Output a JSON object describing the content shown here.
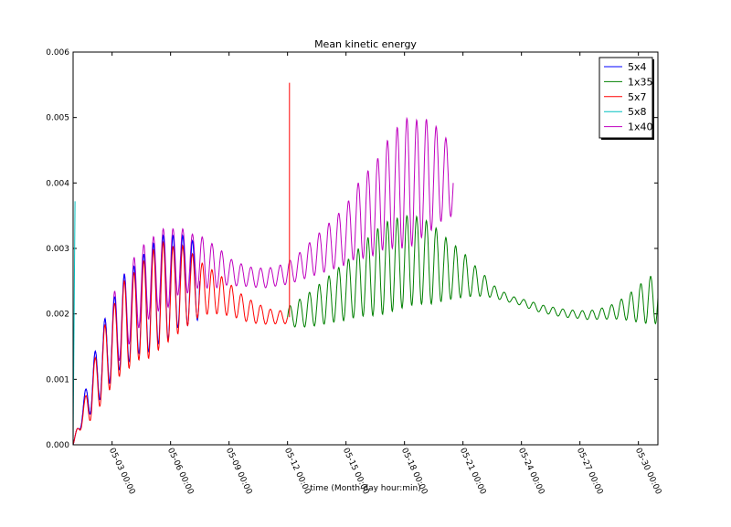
{
  "chart_data": {
    "type": "line",
    "title": "Mean kinetic energy",
    "xlabel": "time (Month-day hour:min)",
    "ylabel": "",
    "x_unit": "day_of_may",
    "xlim": [
      1.0,
      31.0
    ],
    "ylim": [
      0.0,
      0.006
    ],
    "yticks": [
      0.0,
      0.001,
      0.002,
      0.003,
      0.004,
      0.005,
      0.006
    ],
    "ytick_labels": [
      "0.000",
      "0.001",
      "0.002",
      "0.003",
      "0.004",
      "0.005",
      "0.006"
    ],
    "xticks": [
      3,
      6,
      9,
      12,
      15,
      18,
      21,
      24,
      27,
      30
    ],
    "xtick_labels": [
      "05-03 00:00",
      "05-06 00:00",
      "05-09 00:00",
      "05-12 00:00",
      "05-15 00:00",
      "05-18 00:00",
      "05-21 00:00",
      "05-24 00:00",
      "05-27 00:00",
      "05-30 00:00"
    ],
    "grid": false,
    "legend_position": "top-right",
    "series": [
      {
        "name": "5x4",
        "color": "#0000ff",
        "x": [
          1.0,
          1.3,
          1.6,
          2.0,
          2.4,
          2.8,
          3.2,
          3.6,
          4.0,
          4.4,
          4.8,
          5.2,
          5.6,
          6.0,
          6.4,
          6.8,
          7.2,
          7.5
        ],
        "y": [
          0.0,
          0.0003,
          0.0006,
          0.0009,
          0.0012,
          0.0015,
          0.0017,
          0.0019,
          0.002,
          0.0021,
          0.0022,
          0.0023,
          0.0024,
          0.0024,
          0.0025,
          0.0025,
          0.0025,
          0.0025
        ],
        "amplitude": [
          0.0,
          0.0001,
          0.0002,
          0.0004,
          0.0005,
          0.0006,
          0.0006,
          0.0007,
          0.0007,
          0.0007,
          0.0008,
          0.0008,
          0.0008,
          0.0008,
          0.0007,
          0.0007,
          0.0006,
          0.0006
        ]
      },
      {
        "name": "1x35",
        "color": "#008000",
        "x": [
          12.0,
          12.5,
          13.0,
          13.5,
          14.0,
          14.5,
          15.0,
          15.5,
          16.0,
          16.5,
          17.0,
          17.5,
          18.0,
          18.5,
          19.0,
          19.5,
          20.0,
          20.5,
          21.0,
          21.5,
          22.0,
          22.5,
          23.0,
          23.5,
          24.0,
          24.5,
          25.0,
          25.5,
          26.0,
          26.5,
          27.0,
          27.5,
          28.0,
          28.5,
          29.0,
          29.5,
          30.0,
          30.5,
          31.0
        ],
        "y": [
          0.00195,
          0.002,
          0.00205,
          0.00212,
          0.0022,
          0.00228,
          0.00235,
          0.00245,
          0.00255,
          0.00262,
          0.0027,
          0.00275,
          0.0028,
          0.00282,
          0.0028,
          0.00275,
          0.0027,
          0.00265,
          0.0026,
          0.00252,
          0.00245,
          0.00235,
          0.00228,
          0.00222,
          0.00218,
          0.00213,
          0.00208,
          0.00205,
          0.00202,
          0.002,
          0.00199,
          0.00198,
          0.002,
          0.00202,
          0.00206,
          0.0021,
          0.00215,
          0.0022,
          0.00225
        ],
        "amplitude": [
          0.00015,
          0.0002,
          0.00025,
          0.0003,
          0.00035,
          0.0004,
          0.00045,
          0.0005,
          0.00058,
          0.00065,
          0.0007,
          0.0007,
          0.0007,
          0.00068,
          0.00065,
          0.0006,
          0.0005,
          0.00042,
          0.00035,
          0.00025,
          0.00018,
          0.0001,
          7e-05,
          5e-05,
          5e-05,
          6e-05,
          6e-05,
          6e-05,
          6e-05,
          6e-05,
          6e-05,
          7e-05,
          8e-05,
          0.0001,
          0.00014,
          0.0002,
          0.00028,
          0.00035,
          0.0004
        ]
      },
      {
        "name": "5x7",
        "color": "#ff0000",
        "x": [
          1.0,
          1.3,
          1.6,
          2.0,
          2.4,
          2.8,
          3.2,
          3.6,
          4.0,
          4.4,
          4.8,
          5.2,
          5.6,
          6.0,
          6.4,
          6.8,
          7.2,
          7.6,
          8.0,
          8.5,
          9.0,
          9.5,
          10.0,
          10.5,
          11.0,
          11.5,
          12.0
        ],
        "y": [
          0.0,
          0.0003,
          0.0005,
          0.0008,
          0.0011,
          0.0014,
          0.0016,
          0.0018,
          0.0019,
          0.002,
          0.0021,
          0.0022,
          0.0023,
          0.0023,
          0.0024,
          0.0024,
          0.0024,
          0.00238,
          0.00235,
          0.0023,
          0.00222,
          0.00213,
          0.00205,
          0.002,
          0.00196,
          0.00195,
          0.00195
        ],
        "amplitude": [
          0.0,
          0.0001,
          0.0002,
          0.0004,
          0.0005,
          0.0006,
          0.0006,
          0.0007,
          0.0007,
          0.0007,
          0.0008,
          0.0008,
          0.0008,
          0.0007,
          0.0007,
          0.0006,
          0.0005,
          0.0004,
          0.00035,
          0.0003,
          0.00025,
          0.0002,
          0.00018,
          0.00015,
          0.00012,
          0.0001,
          0.0001
        ]
      },
      {
        "name": "5x8",
        "color": "#00bfbf",
        "x": [
          1.0,
          1.1
        ],
        "y": [
          0.0,
          0.00372
        ]
      },
      {
        "name": "1x40",
        "color": "#bf00bf",
        "x": [
          1.0,
          1.3,
          1.6,
          2.0,
          2.4,
          2.8,
          3.2,
          3.6,
          4.0,
          4.4,
          4.8,
          5.2,
          5.6,
          6.0,
          6.4,
          6.8,
          7.2,
          7.6,
          8.0,
          8.5,
          9.0,
          9.5,
          10.0,
          10.5,
          11.0,
          11.5,
          12.0,
          12.5,
          13.0,
          13.5,
          14.0,
          14.5,
          15.0,
          15.5,
          16.0,
          16.5,
          17.0,
          17.5,
          18.0,
          18.5,
          19.0,
          19.5,
          20.0,
          20.5
        ],
        "y": [
          0.0,
          0.0003,
          0.0006,
          0.0009,
          0.0012,
          0.0015,
          0.0018,
          0.002,
          0.0022,
          0.0024,
          0.0025,
          0.0026,
          0.0027,
          0.0027,
          0.0028,
          0.0028,
          0.0028,
          0.00278,
          0.00275,
          0.0027,
          0.00265,
          0.0026,
          0.00257,
          0.00255,
          0.00255,
          0.00258,
          0.00262,
          0.0027,
          0.0028,
          0.0029,
          0.003,
          0.0031,
          0.0032,
          0.0034,
          0.0035,
          0.0036,
          0.0038,
          0.0039,
          0.004,
          0.004,
          0.0041,
          0.0041,
          0.0041,
          0.004
        ],
        "amplitude": [
          0.0,
          0.0001,
          0.0002,
          0.0004,
          0.0005,
          0.0006,
          0.0006,
          0.0006,
          0.0006,
          0.0006,
          0.0006,
          0.0006,
          0.0006,
          0.0006,
          0.0005,
          0.0005,
          0.0004,
          0.0004,
          0.00035,
          0.0003,
          0.0002,
          0.00018,
          0.00015,
          0.00015,
          0.00015,
          0.00015,
          0.00017,
          0.0002,
          0.00025,
          0.0003,
          0.00035,
          0.0004,
          0.00045,
          0.00055,
          0.00065,
          0.0007,
          0.0008,
          0.0009,
          0.001,
          0.00095,
          0.0009,
          0.0008,
          0.00065,
          0.0005
        ]
      }
    ],
    "annotations": [
      {
        "series": "5x7",
        "x": 12.1,
        "y_from": 0.00195,
        "y_to": 0.00553
      }
    ]
  }
}
